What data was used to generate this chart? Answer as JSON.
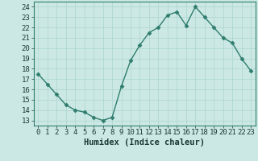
{
  "x": [
    0,
    1,
    2,
    3,
    4,
    5,
    6,
    7,
    8,
    9,
    10,
    11,
    12,
    13,
    14,
    15,
    16,
    17,
    18,
    19,
    20,
    21,
    22,
    23
  ],
  "y": [
    17.5,
    16.5,
    15.5,
    14.5,
    14.0,
    13.8,
    13.3,
    13.0,
    13.3,
    16.3,
    18.8,
    20.3,
    21.5,
    22.0,
    23.2,
    23.5,
    22.2,
    24.0,
    23.0,
    22.0,
    21.0,
    20.5,
    19.0,
    17.8
  ],
  "line_color": "#2e7d6e",
  "marker": "D",
  "markersize": 2.5,
  "linewidth": 1.0,
  "bg_color": "#cce8e4",
  "grid_color": "#b0d8d2",
  "xlabel": "Humidex (Indice chaleur)",
  "xlim": [
    -0.5,
    23.5
  ],
  "ylim": [
    12.5,
    24.5
  ],
  "yticks": [
    13,
    14,
    15,
    16,
    17,
    18,
    19,
    20,
    21,
    22,
    23,
    24
  ],
  "xticks": [
    0,
    1,
    2,
    3,
    4,
    5,
    6,
    7,
    8,
    9,
    10,
    11,
    12,
    13,
    14,
    15,
    16,
    17,
    18,
    19,
    20,
    21,
    22,
    23
  ],
  "tick_fontsize": 6.5,
  "label_fontsize": 7.5,
  "axes_color": "#1a3a35",
  "spine_color": "#2e7d6e"
}
